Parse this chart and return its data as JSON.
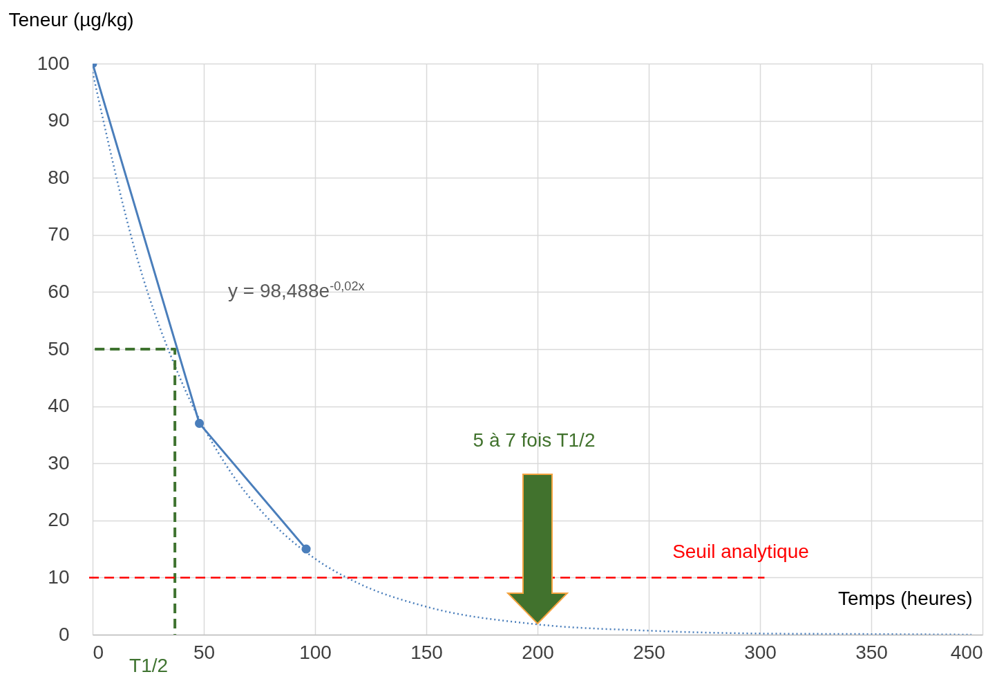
{
  "chart_data": {
    "type": "line",
    "ylabel": "Teneur (µg/kg)",
    "xlabel": "Temps (heures)",
    "xlim": [
      0,
      400
    ],
    "xticks": [
      0,
      50,
      100,
      150,
      200,
      250,
      300,
      350,
      400
    ],
    "ylim": [
      0,
      100
    ],
    "yticks": [
      0,
      10,
      20,
      30,
      40,
      50,
      60,
      70,
      80,
      90,
      100
    ],
    "grid": true,
    "series": [
      {
        "color": "#4a7ebb",
        "marker": "circle",
        "line_style": "solid",
        "x": [
          0,
          48,
          96
        ],
        "values": [
          100,
          37,
          15
        ]
      },
      {
        "color": "#4a7ebb",
        "marker": "none",
        "line_style": "dotted",
        "x": [
          0,
          20,
          40,
          60,
          80,
          100,
          120,
          150,
          200,
          250,
          300,
          350,
          395
        ],
        "values": [
          98.5,
          66.0,
          44.3,
          29.7,
          19.9,
          13.3,
          8.9,
          4.9,
          1.8,
          0.7,
          0.2,
          0.1,
          0.0
        ]
      },
      {
        "color": "#3f7330",
        "marker": "none",
        "line_style": "dashed",
        "x": [
          1,
          37,
          37
        ],
        "values": [
          50,
          50,
          0
        ]
      }
    ],
    "ref_lines": [
      {
        "axis": "y",
        "value": 10,
        "label": "Seuil analytique",
        "color": "#ff0000",
        "line_style": "dashed"
      }
    ],
    "annotations": [
      "y = 98,488e$^{-0,02x}$",
      {
        "text": "T1/2",
        "x": 37,
        "y": 0
      },
      "5 à 7 fois T1/2"
    ]
  }
}
